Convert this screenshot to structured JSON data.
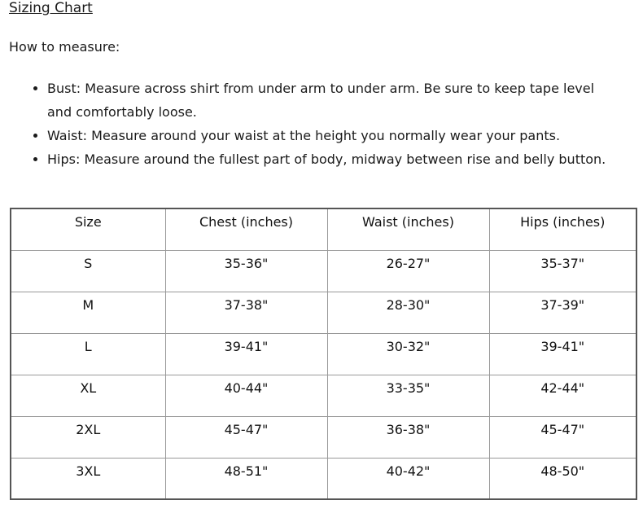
{
  "title": "Sizing Chart",
  "how_to": "How to measure:",
  "bullets": [
    "Bust: Measure across shirt from under arm to under arm. Be sure to keep tape level and comfortably loose.",
    "Waist: Measure around your waist at the height you normally wear your pants.",
    "Hips: Measure around the fullest part of body, midway between rise and belly button."
  ],
  "table": {
    "headers": [
      "Size",
      "Chest (inches)",
      "Waist (inches)",
      "Hips (inches)"
    ],
    "rows": [
      [
        "S",
        "35-36\"",
        "26-27\"",
        "35-37\""
      ],
      [
        "M",
        "37-38\"",
        "28-30\"",
        "37-39\""
      ],
      [
        "L",
        "39-41\"",
        "30-32\"",
        "39-41\""
      ],
      [
        "XL",
        "40-44\"",
        "33-35\"",
        "42-44\""
      ],
      [
        "2XL",
        "45-47\"",
        "36-38\"",
        "45-47\""
      ],
      [
        "3XL",
        "48-51\"",
        "40-42\"",
        "48-50\""
      ]
    ]
  }
}
